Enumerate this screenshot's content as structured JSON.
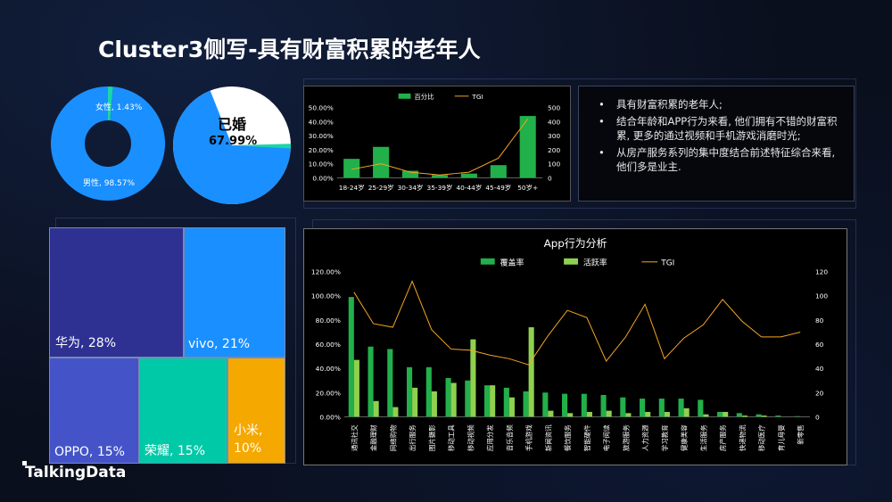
{
  "title": "Cluster3侧写-具有财富积累的老年人",
  "logo": "TalkingData",
  "bullets": [
    "具有财富积累的老年人;",
    "结合年龄和APP行为来看, 他们拥有不错的财富积累, 更多的通过视频和手机游戏消磨时光;",
    "从房产服务系列的集中度结合前述特征综合来看, 他们多是业主."
  ],
  "colors": {
    "blue": "#1a8fff",
    "teal": "#1ad6a8",
    "darkgreen": "#22b04a",
    "lightgreen": "#8fd14f",
    "orange": "#f5a623"
  },
  "chart_data": [
    {
      "type": "pie",
      "name": "gender",
      "slices": [
        {
          "label": "女性",
          "value": 1.43,
          "text": "女性, 1.43%",
          "color": "#1ad6a8"
        },
        {
          "label": "男性",
          "value": 98.57,
          "text": "男性, 98.57%",
          "color": "#1a8fff"
        }
      ]
    },
    {
      "type": "pie",
      "name": "marital",
      "label": "已婚",
      "value_text": "67.99%",
      "value": 67.99,
      "colors": [
        "#1a8fff",
        "#ffffff",
        "#1ad6a8"
      ]
    },
    {
      "type": "bar",
      "name": "age",
      "categories": [
        "18-24岁",
        "25-29岁",
        "30-34岁",
        "35-39岁",
        "40-44岁",
        "45-49岁",
        "50岁+"
      ],
      "series": [
        {
          "name": "百分比",
          "values": [
            13.5,
            22.0,
            5.0,
            2.0,
            3.0,
            9.0,
            44.0
          ],
          "color": "#22b04a"
        },
        {
          "name": "TGI",
          "values": [
            60,
            100,
            40,
            20,
            40,
            140,
            420
          ],
          "color": "#f5a623",
          "axis": "right"
        }
      ],
      "yticks_left": [
        "0.00%",
        "10.00%",
        "20.00%",
        "30.00%",
        "40.00%",
        "50.00%"
      ],
      "yticks_right": [
        "0",
        "100",
        "200",
        "300",
        "400",
        "500"
      ],
      "ylim": [
        0,
        50
      ],
      "ylim_right": [
        0,
        500
      ]
    },
    {
      "type": "treemap",
      "name": "brand",
      "items": [
        {
          "label": "华为, 28%",
          "value": 28,
          "color": "#2e3192"
        },
        {
          "label": "vivo, 21%",
          "value": 21,
          "color": "#1a8fff"
        },
        {
          "label": "OPPO, 15%",
          "value": 15,
          "color": "#4453c8"
        },
        {
          "label": "荣耀, 15%",
          "value": 15,
          "color": "#00c9a7"
        },
        {
          "label": "小米,\n10%",
          "value": 10,
          "color": "#f5a800"
        }
      ]
    },
    {
      "type": "bar",
      "name": "app",
      "title": "App行为分析",
      "categories": [
        "通讯社交",
        "金融理财",
        "网络购物",
        "出行服务",
        "图片摄影",
        "移动工具",
        "移动视频",
        "应用分发",
        "音乐音频",
        "手机游戏",
        "新闻资讯",
        "餐饮服务",
        "智能硬件",
        "电子阅读",
        "旅游服务",
        "人力资源",
        "学习教育",
        "健康美容",
        "生活服务",
        "房产服务",
        "快递物流",
        "移动医疗",
        "育儿母婴",
        "新零售"
      ],
      "series": [
        {
          "name": "覆盖率",
          "color": "#22b04a",
          "values": [
            99,
            58,
            56,
            41,
            41,
            32,
            30,
            26,
            24,
            21,
            20,
            19,
            19,
            18,
            16,
            15,
            15,
            15,
            14,
            4,
            3,
            2,
            1,
            0.5
          ]
        },
        {
          "name": "活跃率",
          "color": "#8fd14f",
          "values": [
            47,
            13,
            8,
            24,
            21,
            28,
            64,
            26,
            16,
            74,
            5,
            3,
            4,
            5,
            3,
            4,
            4,
            7,
            2,
            4,
            1,
            1,
            0,
            0
          ]
        },
        {
          "name": "TGI",
          "color": "#f5a623",
          "axis": "right",
          "values": [
            103,
            77,
            74,
            112,
            72,
            56,
            55,
            51,
            48,
            43,
            67,
            88,
            82,
            46,
            66,
            93,
            48,
            65,
            76,
            97,
            79,
            66,
            66,
            70
          ]
        }
      ],
      "yticks_left": [
        "0.00%",
        "20.00%",
        "40.00%",
        "60.00%",
        "80.00%",
        "100.00%",
        "120.00%"
      ],
      "yticks_right": [
        "0",
        "20",
        "40",
        "60",
        "80",
        "100",
        "120"
      ],
      "ylim": [
        0,
        120
      ],
      "ylim_right": [
        0,
        120
      ]
    }
  ]
}
